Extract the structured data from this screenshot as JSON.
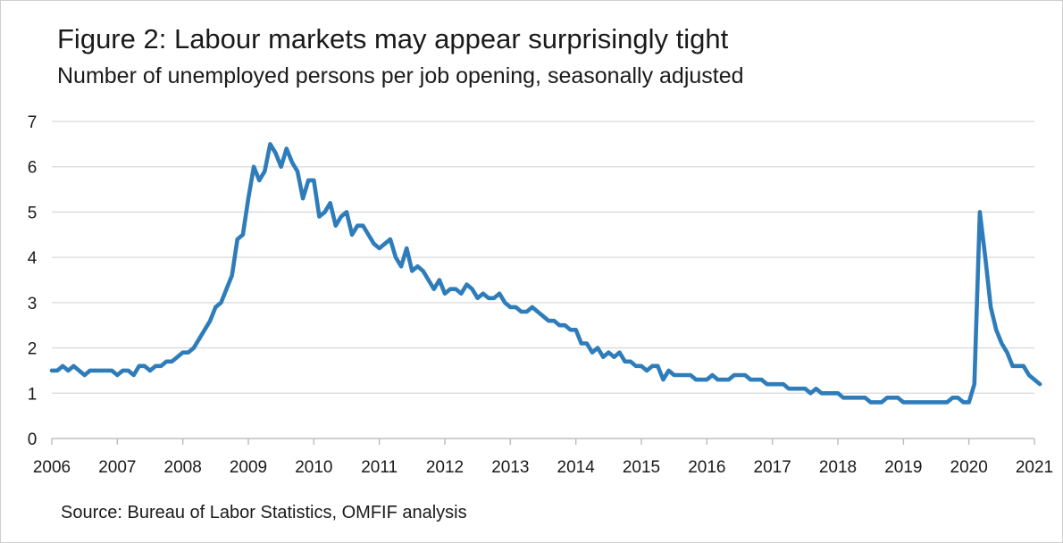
{
  "chart_data": {
    "type": "line",
    "title": "Figure 2: Labour markets may appear surprisingly tight",
    "subtitle": "Number of unemployed persons per job opening, seasonally adjusted",
    "source": "Source: Bureau of Labor Statistics, OMFIF analysis",
    "xlabel": "",
    "ylabel": "",
    "ylim": [
      0,
      7
    ],
    "xlim": [
      2006,
      2021
    ],
    "yticks": [
      0,
      1,
      2,
      3,
      4,
      5,
      6,
      7
    ],
    "xticks": [
      "2006",
      "2007",
      "2008",
      "2009",
      "2010",
      "2011",
      "2012",
      "2013",
      "2014",
      "2015",
      "2016",
      "2017",
      "2018",
      "2019",
      "2020",
      "2021"
    ],
    "grid": "horizontal",
    "line_color": "#2e7dba",
    "frequency": "monthly",
    "start": "2006-01",
    "series": [
      {
        "values": [
          1.5,
          1.5,
          1.6,
          1.5,
          1.6,
          1.5,
          1.4,
          1.5,
          1.5,
          1.5,
          1.5,
          1.5,
          1.4,
          1.5,
          1.5,
          1.4,
          1.6,
          1.6,
          1.5,
          1.6,
          1.6,
          1.7,
          1.7,
          1.8,
          1.9,
          1.9,
          2.0,
          2.2,
          2.4,
          2.6,
          2.9,
          3.0,
          3.3,
          3.6,
          4.4,
          4.5,
          5.3,
          6.0,
          5.7,
          5.9,
          6.5,
          6.3,
          6.0,
          6.4,
          6.1,
          5.9,
          5.3,
          5.7,
          5.7,
          4.9,
          5.0,
          5.2,
          4.7,
          4.9,
          5.0,
          4.5,
          4.7,
          4.7,
          4.5,
          4.3,
          4.2,
          4.3,
          4.4,
          4.0,
          3.8,
          4.2,
          3.7,
          3.8,
          3.7,
          3.5,
          3.3,
          3.5,
          3.2,
          3.3,
          3.3,
          3.2,
          3.4,
          3.3,
          3.1,
          3.2,
          3.1,
          3.1,
          3.2,
          3.0,
          2.9,
          2.9,
          2.8,
          2.8,
          2.9,
          2.8,
          2.7,
          2.6,
          2.6,
          2.5,
          2.5,
          2.4,
          2.4,
          2.1,
          2.1,
          1.9,
          2.0,
          1.8,
          1.9,
          1.8,
          1.9,
          1.7,
          1.7,
          1.6,
          1.6,
          1.5,
          1.6,
          1.6,
          1.3,
          1.5,
          1.4,
          1.4,
          1.4,
          1.4,
          1.3,
          1.3,
          1.3,
          1.4,
          1.3,
          1.3,
          1.3,
          1.4,
          1.4,
          1.4,
          1.3,
          1.3,
          1.3,
          1.2,
          1.2,
          1.2,
          1.2,
          1.1,
          1.1,
          1.1,
          1.1,
          1.0,
          1.1,
          1.0,
          1.0,
          1.0,
          1.0,
          0.9,
          0.9,
          0.9,
          0.9,
          0.9,
          0.8,
          0.8,
          0.8,
          0.9,
          0.9,
          0.9,
          0.8,
          0.8,
          0.8,
          0.8,
          0.8,
          0.8,
          0.8,
          0.8,
          0.8,
          0.9,
          0.9,
          0.8,
          0.8,
          1.2,
          5.0,
          4.0,
          2.9,
          2.4,
          2.1,
          1.9,
          1.6,
          1.6,
          1.6,
          1.4,
          1.3,
          1.2
        ]
      }
    ]
  }
}
